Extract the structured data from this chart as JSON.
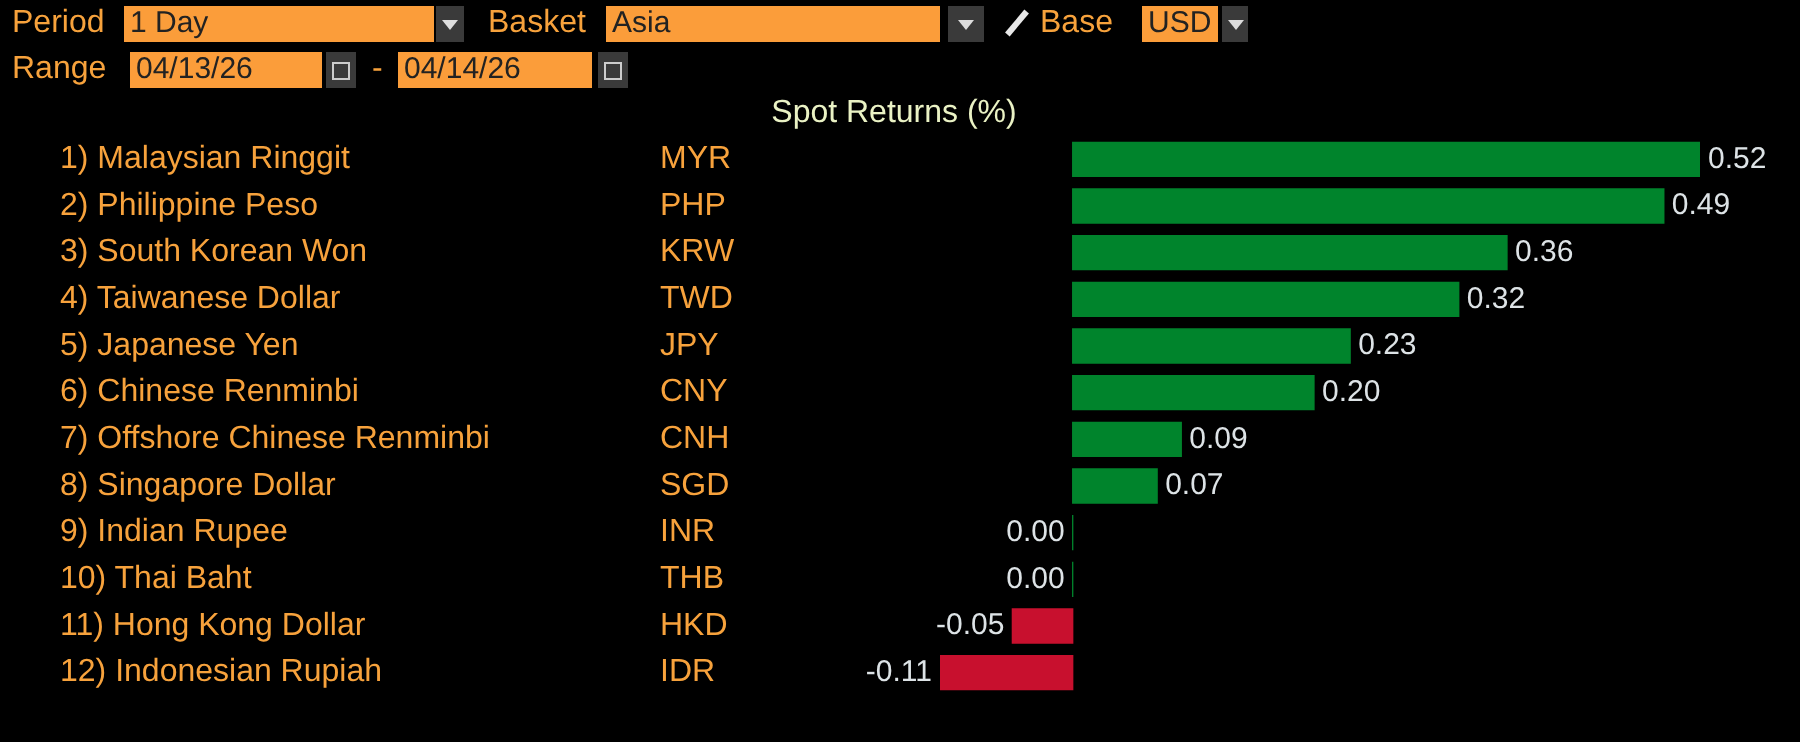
{
  "chart_data": {
    "type": "bar",
    "orientation": "horizontal",
    "title": "Spot Returns (%)",
    "categories": [
      "1) Malaysian Ringgit",
      "2) Philippine Peso",
      "3) South Korean Won",
      "4) Taiwanese Dollar",
      "5) Japanese Yen",
      "6) Chinese Renminbi",
      "7) Offshore Chinese Renminbi",
      "8) Singapore Dollar",
      "9) Indian Rupee",
      "10) Thai Baht",
      "11) Hong Kong Dollar",
      "12) Indonesian Rupiah"
    ],
    "y2_categories": [
      "MYR",
      "PHP",
      "KRW",
      "TWD",
      "JPY",
      "CNY",
      "CNH",
      "SGD",
      "INR",
      "THB",
      "HKD",
      "IDR"
    ],
    "values": [
      0.52,
      0.49,
      0.36,
      0.32,
      0.23,
      0.2,
      0.09,
      0.07,
      0,
      0,
      -0.05,
      -0.11
    ],
    "colors": [
      "#00842c",
      "#00842c",
      "#00842c",
      "#00842c",
      "#00842c",
      "#00842c",
      "#00842c",
      "#00842c",
      "#00842c",
      "#00842c",
      "#c8102e",
      "#c8102e"
    ],
    "value_labels": [
      "0.52",
      "0.49",
      "0.36",
      "0.32",
      "0.23",
      "0.20",
      "0.09",
      "0.07",
      "0.00",
      "0.00",
      "-0.05",
      "-0.11"
    ],
    "annotations": [
      "Period",
      "1 Day",
      "Basket",
      "Asia",
      "Base",
      "USD",
      "Range",
      "04/13/26",
      "-",
      "04/14/26"
    ]
  }
}
